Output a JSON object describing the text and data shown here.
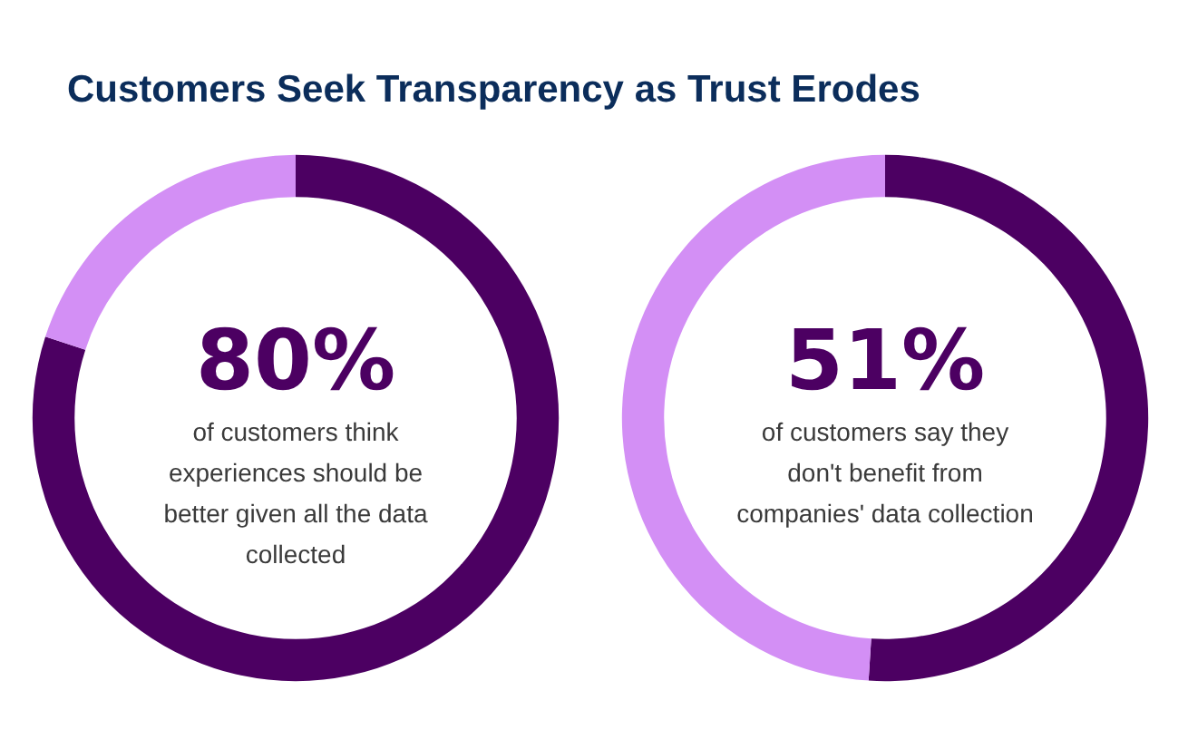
{
  "chart_data": [
    {
      "type": "donut",
      "title": "Customers Seek Transparency as Trust Erodes",
      "categories": [
        null,
        null
      ],
      "values": [
        80,
        20
      ],
      "colors": [
        "#4c0062",
        "#d38ff5"
      ],
      "value_labels": [
        "80%",
        null
      ],
      "annotations": [
        "of customers think experiences should be better given all the data collected"
      ]
    },
    {
      "type": "donut",
      "categories": [
        null,
        null
      ],
      "values": [
        51,
        49
      ],
      "colors": [
        "#4c0062",
        "#d38ff5"
      ],
      "value_labels": [
        "51%",
        null
      ],
      "annotations": [
        "of customers say they don't benefit from companies' data collection"
      ]
    }
  ]
}
